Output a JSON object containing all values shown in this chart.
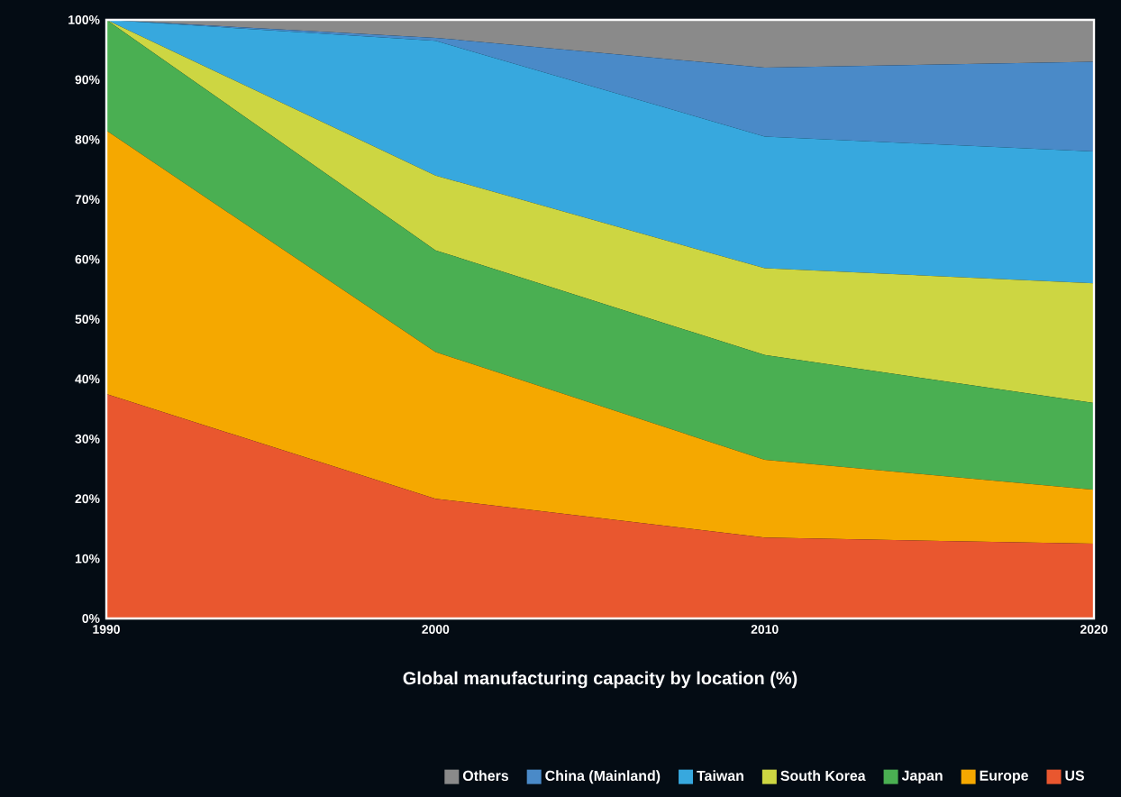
{
  "chart_data": {
    "type": "area",
    "stacked": true,
    "xlabel": "Global manufacturing capacity by location (%)",
    "x": [
      1990,
      2000,
      2010,
      2020
    ],
    "xlim": [
      1990,
      2020
    ],
    "xticks": [
      1990,
      2000,
      2010,
      2020
    ],
    "ylim": [
      0,
      100
    ],
    "yticks": [
      {
        "value": 0,
        "label": "0%"
      },
      {
        "value": 10,
        "label": "10%"
      },
      {
        "value": 20,
        "label": "20%"
      },
      {
        "value": 30,
        "label": "30%"
      },
      {
        "value": 40,
        "label": "40%"
      },
      {
        "value": 50,
        "label": "50%"
      },
      {
        "value": 60,
        "label": "60%"
      },
      {
        "value": 70,
        "label": "70%"
      },
      {
        "value": 80,
        "label": "80%"
      },
      {
        "value": 90,
        "label": "90%"
      },
      {
        "value": 100,
        "label": "100%"
      }
    ],
    "legend": "bottom",
    "grid": false,
    "series": [
      {
        "name": "US",
        "color": "#e9572f",
        "values": [
          37.5,
          20,
          13.5,
          12.5
        ]
      },
      {
        "name": "Europe",
        "color": "#f5a800",
        "values": [
          44,
          24.5,
          13,
          9
        ]
      },
      {
        "name": "Japan",
        "color": "#4aaf52",
        "values": [
          18.5,
          17,
          17.5,
          14.5
        ]
      },
      {
        "name": "South Korea",
        "color": "#cdd642",
        "values": [
          0,
          12.5,
          14.5,
          20
        ]
      },
      {
        "name": "Taiwan",
        "color": "#37a8de",
        "values": [
          0,
          22.5,
          22,
          22
        ]
      },
      {
        "name": "China (Mainland)",
        "color": "#4a8ac8",
        "values": [
          0,
          0.5,
          11.5,
          15
        ]
      },
      {
        "name": "Others",
        "color": "#8a8a8a",
        "values": [
          0,
          3,
          8,
          7
        ]
      }
    ]
  }
}
